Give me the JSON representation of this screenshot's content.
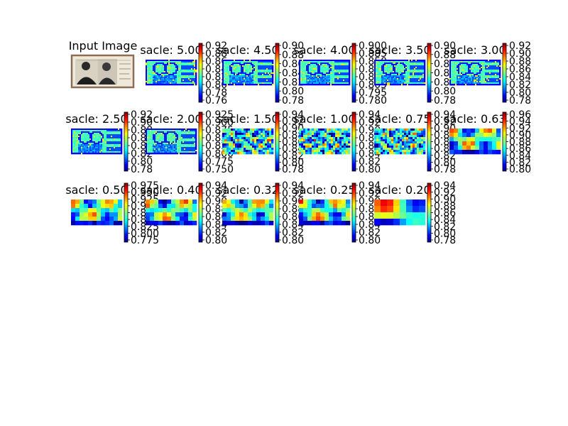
{
  "figure": {
    "input_panel": {
      "title": "Input Image"
    },
    "panels": [
      {
        "title": "sacle: 5.00",
        "ticks": [
          "0.92",
          "0.88",
          "0.86",
          "0.84",
          "0.82",
          "0.80",
          "0.78",
          "0.76"
        ],
        "pattern": "edges"
      },
      {
        "title": "sacle: 4.50",
        "ticks": [
          "0.90",
          "0.88",
          "0.86",
          "0.84",
          "0.82",
          "0.80",
          "0.78"
        ],
        "pattern": "edges"
      },
      {
        "title": "sacle: 4.00",
        "ticks": [
          "0.900",
          "0.885",
          "0.850",
          "0.835",
          "0.820",
          "0.805",
          "0.795",
          "0.780"
        ],
        "pattern": "edges"
      },
      {
        "title": "sacle: 3.50",
        "ticks": [
          "0.90",
          "0.88",
          "0.86",
          "0.84",
          "0.82",
          "0.80",
          "0.78"
        ],
        "pattern": "edges"
      },
      {
        "title": "sacle: 3.00",
        "ticks": [
          "0.92",
          "0.90",
          "0.88",
          "0.86",
          "0.84",
          "0.82",
          "0.80",
          "0.78"
        ],
        "pattern": "edges"
      },
      {
        "title": "sacle: 2.50",
        "ticks": [
          "0.92",
          "0.90",
          "0.88",
          "0.86",
          "0.84",
          "0.82",
          "0.80",
          "0.78"
        ],
        "pattern": "edges"
      },
      {
        "title": "sacle: 2.00",
        "ticks": [
          "0.925",
          "0.900",
          "0.875",
          "0.850",
          "0.825",
          "0.800",
          "0.775",
          "0.750"
        ],
        "pattern": "edges"
      },
      {
        "title": "sacle: 1.50",
        "ticks": [
          "0.94",
          "0.92",
          "0.90",
          "0.88",
          "0.86",
          "0.84",
          "0.82",
          "0.80",
          "0.78"
        ],
        "pattern": "noisy"
      },
      {
        "title": "sacle: 1.00",
        "ticks": [
          "0.94",
          "0.92",
          "0.90",
          "0.88",
          "0.86",
          "0.84",
          "0.82",
          "0.80"
        ],
        "pattern": "noisy"
      },
      {
        "title": "sacle: 0.75",
        "ticks": [
          "0.94",
          "0.92",
          "0.90",
          "0.88",
          "0.86",
          "0.84",
          "0.82",
          "0.80",
          "0.78"
        ],
        "pattern": "noisy"
      },
      {
        "title": "sacle: 0.63",
        "ticks": [
          "0.96",
          "0.94",
          "0.92",
          "0.90",
          "0.88",
          "0.86",
          "0.84",
          "0.82",
          "0.80"
        ],
        "pattern": "blobby"
      },
      {
        "title": "sacle: 0.50",
        "ticks": [
          "0.975",
          "0.950",
          "0.925",
          "0.900",
          "0.875",
          "0.850",
          "0.825",
          "0.800",
          "0.775"
        ],
        "pattern": "blobby"
      },
      {
        "title": "sacle: 0.40",
        "ticks": [
          "0.94",
          "0.92",
          "0.90",
          "0.88",
          "0.86",
          "0.84",
          "0.82",
          "0.80"
        ],
        "pattern": "blobby"
      },
      {
        "title": "sacle: 0.32",
        "ticks": [
          "0.94",
          "0.92",
          "0.90",
          "0.88",
          "0.86",
          "0.84",
          "0.82",
          "0.80"
        ],
        "pattern": "blobby"
      },
      {
        "title": "sacle: 0.25",
        "ticks": [
          "0.94",
          "0.92",
          "0.90",
          "0.88",
          "0.86",
          "0.84",
          "0.82",
          "0.80"
        ],
        "pattern": "blobby"
      },
      {
        "title": "sacle: 0.20",
        "ticks": [
          "0.94",
          "0.92",
          "0.90",
          "0.88",
          "0.86",
          "0.84",
          "0.82",
          "0.80",
          "0.78"
        ],
        "pattern": "smooth"
      }
    ]
  },
  "colors": {
    "background": "#ffffff",
    "colormap": "jet",
    "frame": "#8b6e55"
  }
}
